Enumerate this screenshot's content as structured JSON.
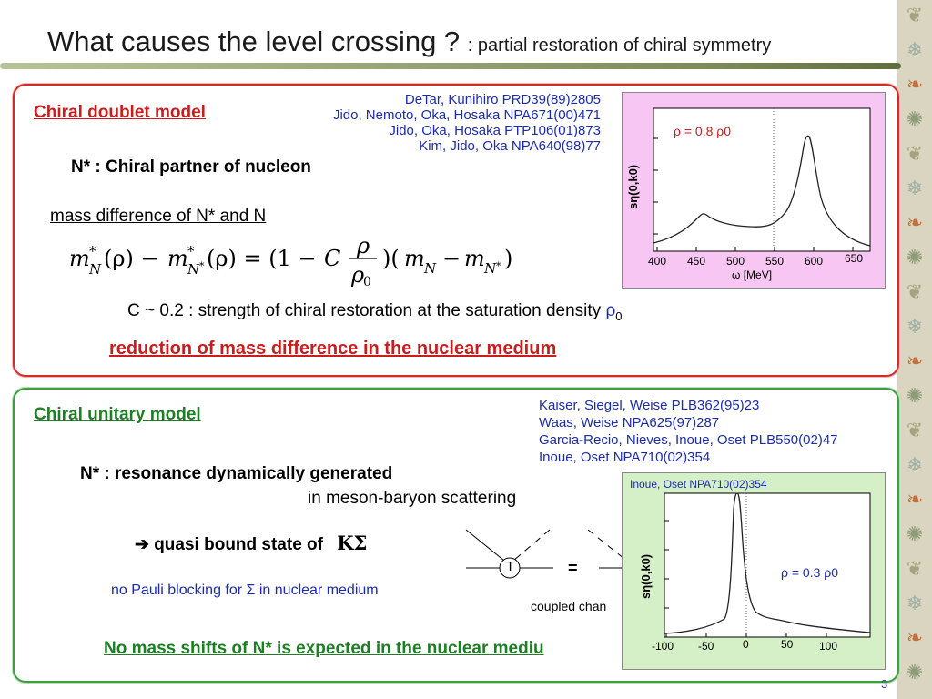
{
  "title": {
    "main": "What causes the level crossing ?",
    "sub": ": partial restoration of chiral symmetry"
  },
  "box1": {
    "heading": "Chiral doublet model",
    "refs": [
      "DeTar, Kunihiro PRD39(89)2805",
      "Jido, Nemoto, Oka, Hosaka NPA671(00)471",
      "Jido, Oka, Hosaka PTP106(01)873",
      "Kim, Jido, Oka NPA640(98)77"
    ],
    "partner": "N* : Chiral partner of nucleon",
    "massdiff": "mass difference of N* and N",
    "strength_pre": "C ~ 0.2 : strength of chiral restoration at the saturation density ",
    "strength_sym": "ρ",
    "strength_sub": "0",
    "conclusion": "reduction of mass difference in the nuclear medium"
  },
  "plot1": {
    "label": "ρ = 0.8 ρ0",
    "ylabel": "sη(0,k0)",
    "xlabel": "ω [MeV]",
    "xticks": [
      "400",
      "450",
      "500",
      "550",
      "600",
      "650"
    ]
  },
  "box2": {
    "heading": "Chiral unitary model",
    "refs": [
      "Kaiser, Siegel, Weise PLB362(95)23",
      "Waas, Weise NPA625(97)287",
      "Garcia-Recio, Nieves, Inoue, Oset PLB550(02)47",
      "Inoue, Oset NPA710(02)354"
    ],
    "res1": "N* : resonance dynamically generated",
    "res2": "in meson-baryon scattering",
    "quasi": "quasi bound state of",
    "ksigma": "KΣ",
    "pauli": "no Pauli blocking for Σ in nuclear medium",
    "diagram_T": "T",
    "diagram_eq": "=",
    "coupled": "coupled chan",
    "conclusion": "No mass shifts of N* is expected in the nuclear mediu"
  },
  "plot2": {
    "ref": "Inoue, Oset NPA710(02)354",
    "label": "ρ = 0.3 ρ0",
    "ylabel": "sη(0,k0)",
    "xticks": [
      "-100",
      "-50",
      "0",
      "50",
      "100"
    ]
  },
  "page_number": "3",
  "colors": {
    "red": "#c61e1e",
    "green": "#1d7f24",
    "blue": "#1c2bab",
    "pink_panel": "#f7c6f3",
    "green_panel": "#d5f0c6"
  }
}
